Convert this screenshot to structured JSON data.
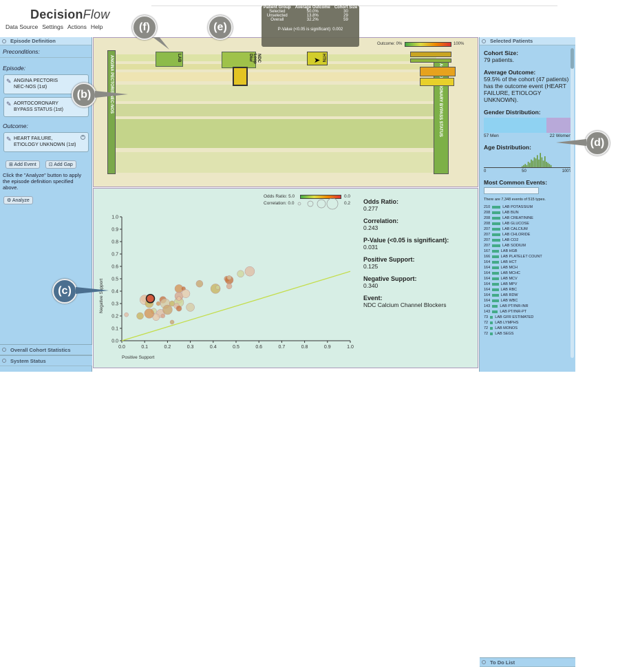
{
  "app": {
    "name_main": "Decision",
    "name_italic": "Flow"
  },
  "menu": [
    "Data Source",
    "Settings",
    "Actions",
    "Help"
  ],
  "left": {
    "header": "Episode Definition",
    "preconditions": "Preconditions:",
    "episode": "Episode:",
    "ev1_line1": "ANGINA PECTORIS",
    "ev1_line2": "NEC-NOS (1st)",
    "ev2_line1": "AORTOCORONARY",
    "ev2_line2": "BYPASS STATUS (1st)",
    "outcome": "Outcome:",
    "out_line1": "HEART FAILURE,",
    "out_line2": "ETIOLOGY UNKNOWN (1st)",
    "add_event": "Add Event",
    "add_gap": "Add Gap",
    "note": "Click the \"Analyze\" button to apply the episode definition specified above.",
    "analyze": "Analyze",
    "overall": "Overall Cohort Statistics",
    "system": "System Status"
  },
  "episode": {
    "legend_label": "Outcome: 0%",
    "legend_max": "100%",
    "start_label": "ANGINA PECTORIS NEC-NOS",
    "end_label": "AORTOCORONARY BYPASS STATUS",
    "lab_label": "LAB",
    "ndc_label": "NDC Loop Diur",
    "htn_label": "HTN"
  },
  "tooltip": {
    "h1": "Patient Group",
    "h2": "Average Outcome",
    "h3": "Cohort Size",
    "rows": [
      [
        "Selected",
        "50.0%",
        "30"
      ],
      [
        "Unselected",
        "13.8%",
        "29"
      ],
      [
        "Overall",
        "32.2%",
        "59"
      ]
    ],
    "pvalue": "P-Value (<0.05 is significant): 0.002"
  },
  "callouts": {
    "b": "(b)",
    "c": "(c)",
    "d": "(d)",
    "e": "(e)",
    "f": "(f)"
  },
  "scatter": {
    "odds_label": "Odds Ratio: 5.0",
    "odds_max": "0.0",
    "corr_label": "Correlation: 0.0",
    "corr_max": "0.2",
    "xlabel": "Positive Support",
    "ylabel": "Negative Support",
    "ticks": [
      "0.0",
      "0.1",
      "0.2",
      "0.3",
      "0.4",
      "0.5",
      "0.6",
      "0.7",
      "0.8",
      "0.9",
      "1.0"
    ]
  },
  "chart_data": {
    "type": "scatter",
    "xlabel": "Positive Support",
    "ylabel": "Negative Support",
    "xlim": [
      0,
      1
    ],
    "ylim": [
      0,
      1
    ],
    "points": [
      [
        0.02,
        0.21
      ],
      [
        0.1,
        0.34
      ],
      [
        0.1,
        0.33
      ],
      [
        0.13,
        0.34
      ],
      [
        0.12,
        0.3
      ],
      [
        0.16,
        0.3
      ],
      [
        0.18,
        0.33
      ],
      [
        0.19,
        0.3
      ],
      [
        0.14,
        0.24
      ],
      [
        0.17,
        0.22
      ],
      [
        0.18,
        0.2
      ],
      [
        0.15,
        0.19
      ],
      [
        0.2,
        0.25
      ],
      [
        0.22,
        0.3
      ],
      [
        0.25,
        0.42
      ],
      [
        0.27,
        0.42
      ],
      [
        0.25,
        0.33
      ],
      [
        0.25,
        0.31
      ],
      [
        0.24,
        0.28
      ],
      [
        0.25,
        0.36
      ],
      [
        0.25,
        0.34
      ],
      [
        0.34,
        0.46
      ],
      [
        0.41,
        0.42
      ],
      [
        0.46,
        0.5
      ],
      [
        0.47,
        0.49
      ],
      [
        0.47,
        0.51
      ],
      [
        0.52,
        0.54
      ],
      [
        0.56,
        0.56
      ],
      [
        0.47,
        0.44
      ],
      [
        0.28,
        0.38
      ],
      [
        0.22,
        0.15
      ],
      [
        0.08,
        0.2
      ],
      [
        0.12,
        0.22
      ],
      [
        0.25,
        0.26
      ],
      [
        0.3,
        0.27
      ],
      [
        0.42,
        0.43
      ]
    ],
    "highlight": [
      0.125,
      0.34
    ],
    "trend": [
      [
        0,
        0
      ],
      [
        1,
        0.56
      ]
    ]
  },
  "stats": [
    {
      "label": "Odds Ratio:",
      "value": "0.277"
    },
    {
      "label": "Correlation:",
      "value": "0.243"
    },
    {
      "label": "P-Value (<0.05 is significant):",
      "value": "0.031"
    },
    {
      "label": "Positive Support:",
      "value": "0.125"
    },
    {
      "label": "Negative Support:",
      "value": "0.340"
    },
    {
      "label": "Event:",
      "value": "NDC Calcium Channel Blockers"
    }
  ],
  "right": {
    "header": "Selected Patients",
    "cohort_label": "Cohort Size:",
    "cohort_value": "79 patients.",
    "avg_label": "Average Outcome:",
    "avg_value": "59.5% of the cohort (47 patients) has the outcome event (HEART FAILURE, ETIOLOGY UNKNOWN).",
    "gender_label": "Gender Distribution:",
    "men": "57 Men",
    "women": "22 Women",
    "men_share": 0.72,
    "age_label": "Age Distribution:",
    "age_ticks": [
      "0",
      "50",
      "100?"
    ],
    "common_label": "Most Common Events:",
    "events_note": "There are 7,348 events of 515 types.",
    "events": [
      [
        "210",
        "LAB POTASSIUM"
      ],
      [
        "208",
        "LAB BUN"
      ],
      [
        "208",
        "LAB CREATININE"
      ],
      [
        "208",
        "LAB GLUCOSE"
      ],
      [
        "207",
        "LAB CALCIUM"
      ],
      [
        "207",
        "LAB CHLORIDE"
      ],
      [
        "207",
        "LAB CO2"
      ],
      [
        "207",
        "LAB SODIUM"
      ],
      [
        "167",
        "LAB HGB"
      ],
      [
        "166",
        "LAB PLATELET COUNT"
      ],
      [
        "164",
        "LAB HCT"
      ],
      [
        "164",
        "LAB MCH"
      ],
      [
        "164",
        "LAB MCHC"
      ],
      [
        "164",
        "LAB MCV"
      ],
      [
        "164",
        "LAB MPV"
      ],
      [
        "164",
        "LAB RBC"
      ],
      [
        "164",
        "LAB RDW"
      ],
      [
        "164",
        "LAB WBC"
      ],
      [
        "143",
        "LAB PT/INR-INR"
      ],
      [
        "143",
        "LAB PT/INR-PT"
      ],
      [
        "73",
        "LAB GFR ESTIMATED"
      ],
      [
        "72",
        "LAB LYMPHS"
      ],
      [
        "72",
        "LAB MONOS"
      ],
      [
        "72",
        "LAB SEGS"
      ]
    ],
    "todo": "To Do List"
  }
}
